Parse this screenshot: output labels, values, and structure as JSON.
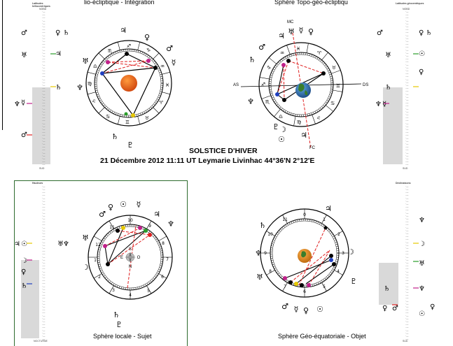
{
  "titles": {
    "top_left": "lio-écliptique - Intégration",
    "top_right": "Sphère Topo-géo-écliptiqu",
    "center_line1": "SOLSTICE D'HIVER",
    "center_line2": "21 Décembre 2012     11:11 UT    Leymarie Livinhac    44°36'N    2°12'E",
    "bottom_left": "Sphère locale - Sujet",
    "bottom_right": "Sphère Géo-équatoriale - Objet"
  },
  "strips": {
    "tl_header": "Latitudes héliocentriques",
    "tr_header": "Latitudes géocentriques",
    "bl_header": "Hauteurs",
    "br_header": "Déclinaisons",
    "top_label": "NORD",
    "bottom_label_tl": "SUD",
    "bottom_label_tr": "SUD",
    "bottom_label_bl": "NOCTURNE",
    "bottom_label_br": "SUD"
  },
  "chart_labels": {
    "mc": "MC",
    "as": "AS",
    "ds": "DS",
    "fc": "FC",
    "south": "S",
    "north": "N",
    "east": "E",
    "west": "O"
  },
  "colors": {
    "sun": "#e8601c",
    "earth": "#3a7d2c",
    "aspect_red": "#e02020",
    "planet_magenta": "#c0208a",
    "planet_green": "#2a9d2a",
    "planet_yellow": "#e6c800",
    "planet_blue": "#2040c0",
    "frame_green": "#2e6b2e"
  },
  "icons": [
    "sun-icon",
    "earth-icon",
    "compass-icon"
  ]
}
